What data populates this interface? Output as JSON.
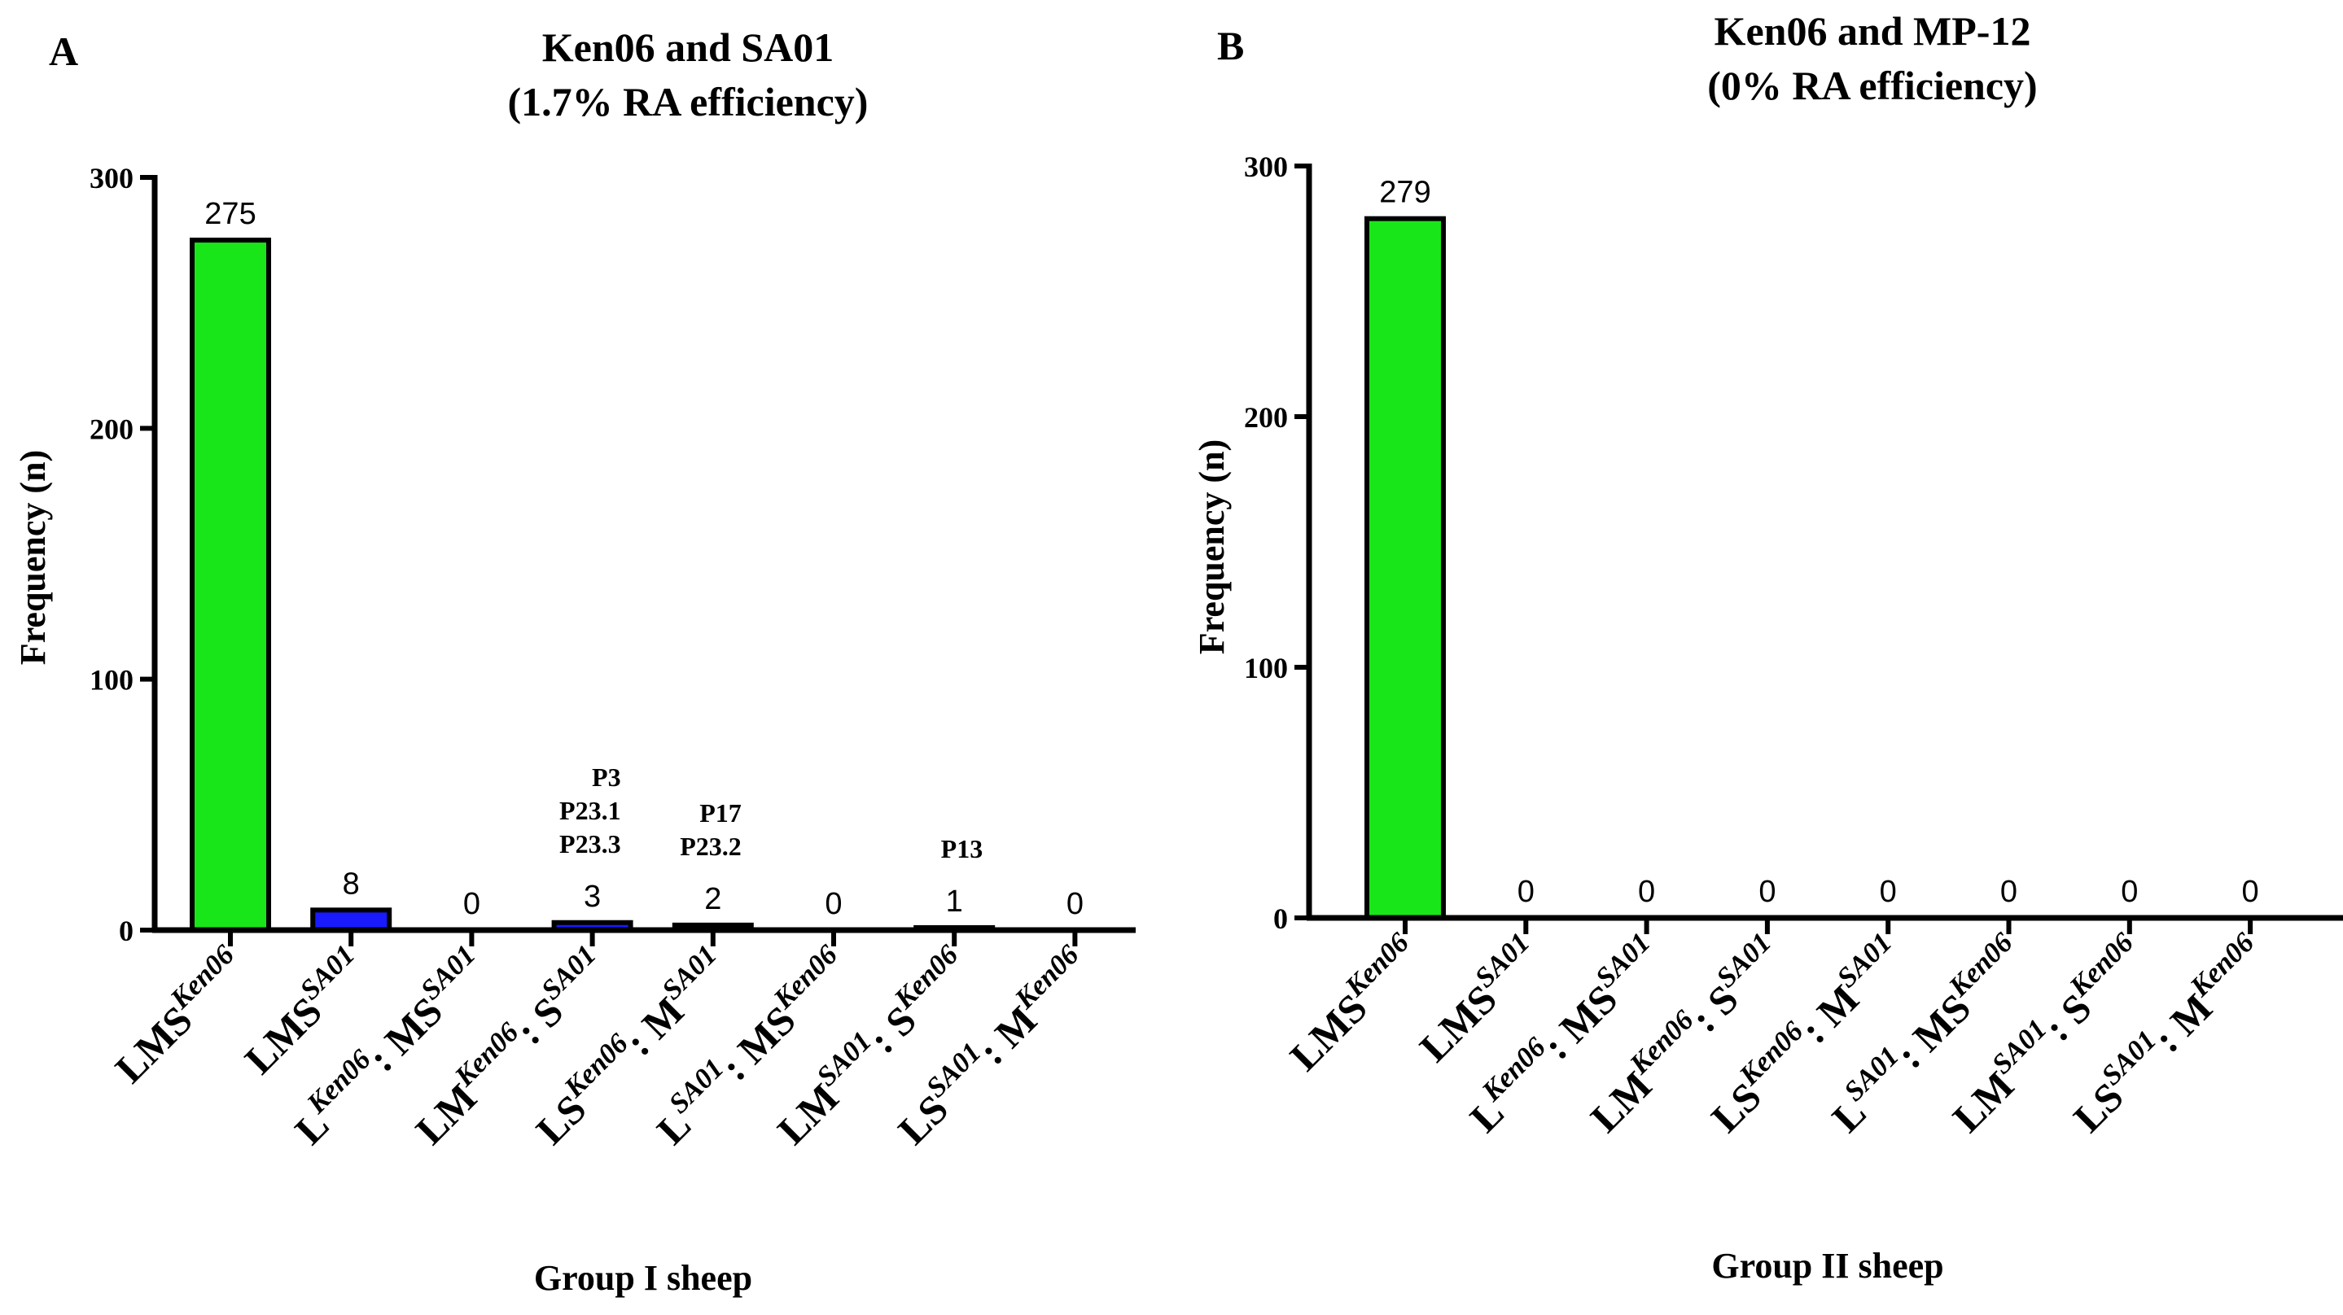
{
  "panels": [
    {
      "letter": "A",
      "title_lines": [
        "Ken06 and SA01",
        "(1.7% RA efficiency)"
      ],
      "ylabel": "Frequency (n)",
      "xlabel": "Group I sheep"
    },
    {
      "letter": "B",
      "title_lines": [
        "Ken06 and MP-12",
        "(0% RA efficiency)"
      ],
      "ylabel": "Frequency (n)",
      "xlabel": "Group II sheep"
    }
  ],
  "chart_data": [
    {
      "type": "bar",
      "title": "Ken06 and SA01 (1.7% RA efficiency)",
      "xlabel": "Group I sheep",
      "ylabel": "Frequency (n)",
      "ylim": [
        0,
        300
      ],
      "yticks": [
        0,
        100,
        200,
        300
      ],
      "grid": false,
      "categories": [
        {
          "parts": [
            {
              "t": "LMS"
            },
            {
              "t": "Ken06",
              "sup": true
            }
          ]
        },
        {
          "parts": [
            {
              "t": "LMS"
            },
            {
              "t": "SA01",
              "sup": true
            }
          ]
        },
        {
          "parts": [
            {
              "t": "L"
            },
            {
              "t": "Ken06",
              "sup": true
            },
            {
              "t": ": MS"
            },
            {
              "t": "SA01",
              "sup": true
            }
          ]
        },
        {
          "parts": [
            {
              "t": "LM"
            },
            {
              "t": "Ken06",
              "sup": true
            },
            {
              "t": ": S"
            },
            {
              "t": "SA01",
              "sup": true
            }
          ]
        },
        {
          "parts": [
            {
              "t": "LS"
            },
            {
              "t": "Ken06",
              "sup": true
            },
            {
              "t": ": M"
            },
            {
              "t": "SA01",
              "sup": true
            }
          ]
        },
        {
          "parts": [
            {
              "t": "L"
            },
            {
              "t": "SA01",
              "sup": true
            },
            {
              "t": ": MS"
            },
            {
              "t": "Ken06",
              "sup": true
            }
          ]
        },
        {
          "parts": [
            {
              "t": "LM"
            },
            {
              "t": "SA01",
              "sup": true
            },
            {
              "t": ": S"
            },
            {
              "t": "Ken06",
              "sup": true
            }
          ]
        },
        {
          "parts": [
            {
              "t": "LS"
            },
            {
              "t": "SA01",
              "sup": true
            },
            {
              "t": ": M"
            },
            {
              "t": "Ken06",
              "sup": true
            }
          ]
        }
      ],
      "values": [
        275,
        8,
        0,
        3,
        2,
        0,
        1,
        0
      ],
      "value_labels": [
        "275",
        "8",
        "0",
        "3",
        "2",
        "0",
        "1",
        "0"
      ],
      "colors": [
        "#19e619",
        "#1a1aff",
        null,
        "#1a1aff",
        "#1a1aff",
        null,
        "#1a1aff",
        null
      ],
      "annotations": [
        {
          "category_index": 3,
          "lines": [
            "P3",
            "P23.1",
            "P23.3"
          ]
        },
        {
          "category_index": 4,
          "lines": [
            "P17",
            "P23.2"
          ]
        },
        {
          "category_index": 6,
          "lines": [
            "P13"
          ]
        }
      ]
    },
    {
      "type": "bar",
      "title": "Ken06 and MP-12 (0% RA efficiency)",
      "xlabel": "Group II sheep",
      "ylabel": "Frequency (n)",
      "ylim": [
        0,
        300
      ],
      "yticks": [
        0,
        100,
        200,
        300
      ],
      "grid": false,
      "categories": [
        {
          "parts": [
            {
              "t": "LMS"
            },
            {
              "t": "Ken06",
              "sup": true
            }
          ]
        },
        {
          "parts": [
            {
              "t": "LMS"
            },
            {
              "t": "SA01",
              "sup": true
            }
          ]
        },
        {
          "parts": [
            {
              "t": "L"
            },
            {
              "t": "Ken06",
              "sup": true
            },
            {
              "t": ": MS"
            },
            {
              "t": "SA01",
              "sup": true
            }
          ]
        },
        {
          "parts": [
            {
              "t": "LM"
            },
            {
              "t": "Ken06",
              "sup": true
            },
            {
              "t": ": S"
            },
            {
              "t": "SA01",
              "sup": true
            }
          ]
        },
        {
          "parts": [
            {
              "t": "LS"
            },
            {
              "t": "Ken06",
              "sup": true
            },
            {
              "t": ": M"
            },
            {
              "t": "SA01",
              "sup": true
            }
          ]
        },
        {
          "parts": [
            {
              "t": "L"
            },
            {
              "t": "SA01",
              "sup": true
            },
            {
              "t": ": MS"
            },
            {
              "t": "Ken06",
              "sup": true
            }
          ]
        },
        {
          "parts": [
            {
              "t": "LM"
            },
            {
              "t": "SA01",
              "sup": true
            },
            {
              "t": ": S"
            },
            {
              "t": "Ken06",
              "sup": true
            }
          ]
        },
        {
          "parts": [
            {
              "t": "LS"
            },
            {
              "t": "SA01",
              "sup": true
            },
            {
              "t": ": M"
            },
            {
              "t": "Ken06",
              "sup": true
            }
          ]
        }
      ],
      "values": [
        279,
        0,
        0,
        0,
        0,
        0,
        0,
        0
      ],
      "value_labels": [
        "279",
        "0",
        "0",
        "0",
        "0",
        "0",
        "0",
        "0"
      ],
      "colors": [
        "#19e619",
        null,
        null,
        null,
        null,
        null,
        null,
        null
      ],
      "annotations": []
    }
  ]
}
